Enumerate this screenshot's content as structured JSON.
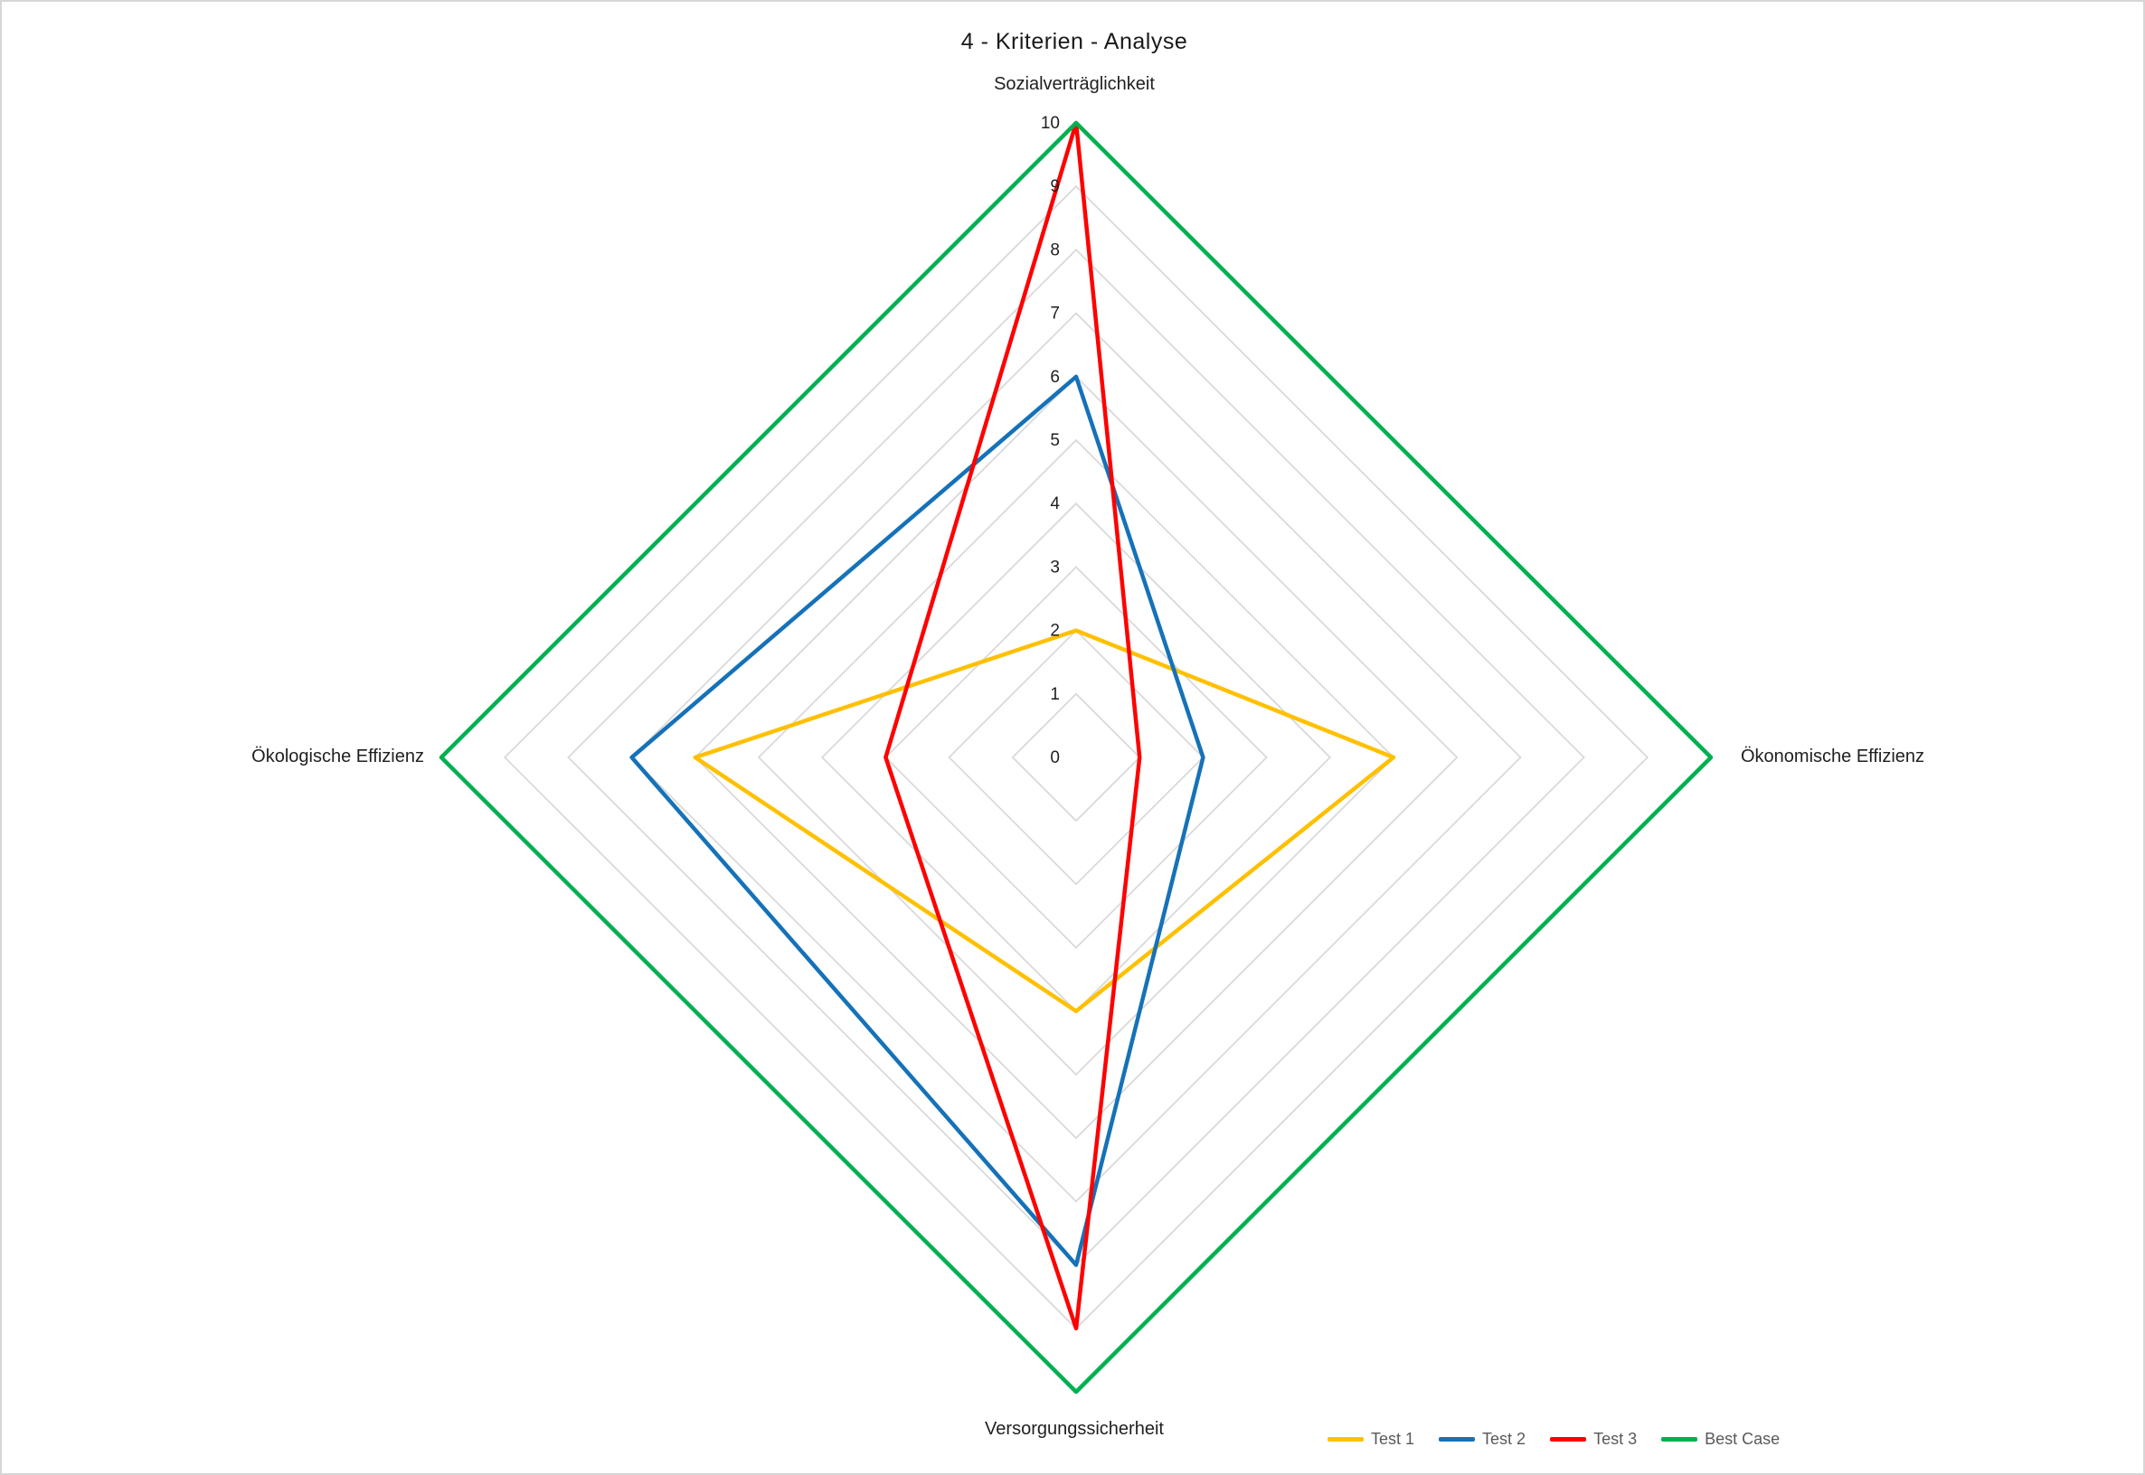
{
  "title": "4 - Kriterien - Analyse",
  "frame": {
    "background": "#ffffff",
    "border_color": "#d6d6d6"
  },
  "chart_data": {
    "type": "radar",
    "title": "4 - Kriterien - Analyse",
    "categories": [
      "Sozialverträglichkeit",
      "Ökonomische Effizienz",
      "Versorgungssicherheit",
      "Ökologische Effizienz"
    ],
    "series": [
      {
        "name": "Test 1",
        "color": "#FFC000",
        "values": [
          2,
          5,
          4,
          6
        ]
      },
      {
        "name": "Test 2",
        "color": "#1572B8",
        "values": [
          6,
          2,
          8,
          7
        ]
      },
      {
        "name": "Test 3",
        "color": "#FF0000",
        "values": [
          10,
          1,
          9,
          3
        ]
      },
      {
        "name": "Best Case",
        "color": "#00B050",
        "values": [
          10,
          10,
          10,
          10
        ]
      }
    ],
    "axis": {
      "min": 0,
      "max": 10,
      "step": 1,
      "ticks": [
        0,
        1,
        2,
        3,
        4,
        5,
        6,
        7,
        8,
        9,
        10
      ],
      "tick_color": "#1f1f1f"
    },
    "grid": {
      "shown": true,
      "shape": "diamond",
      "color": "#D9D9D9"
    },
    "legend_position": "bottom-right",
    "legend_text_color": "#595959"
  }
}
